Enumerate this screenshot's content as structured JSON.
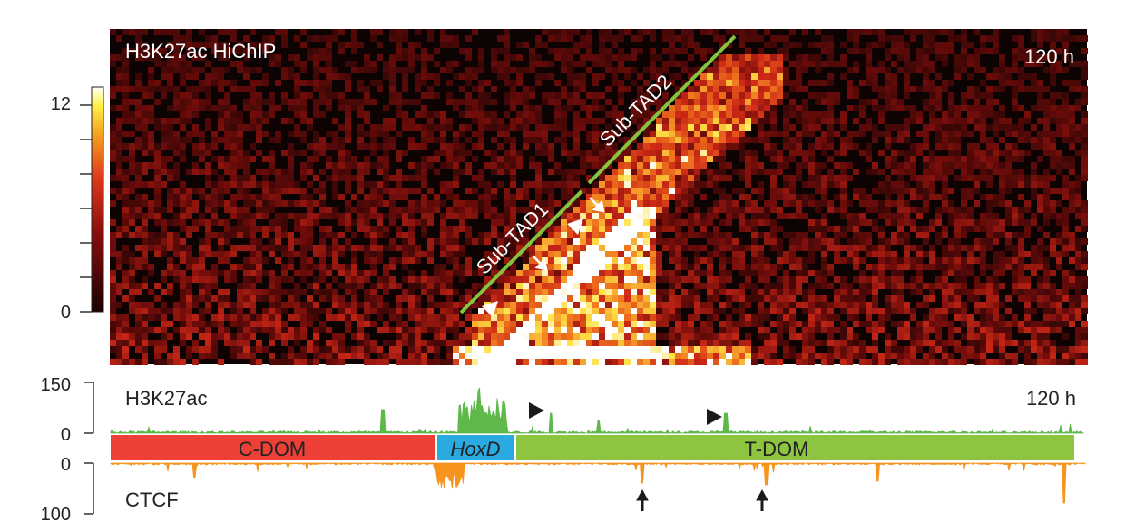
{
  "heatmap": {
    "title": "H3K27ac HiChIP",
    "timepoint": "120 h",
    "colorbar": {
      "max_label": "12",
      "min_label": "0",
      "min": 0,
      "max": 12
    },
    "domain_labels": {
      "sub_tad1": "Sub-TAD1",
      "sub_tad2": "Sub-TAD2"
    },
    "domain_line_color": "#86c440"
  },
  "h3k27ac_track": {
    "label": "H3K27ac",
    "timepoint": "120 h",
    "ymax_label": "150",
    "ymin_label": "0",
    "color": "#5fb94a"
  },
  "domains": [
    {
      "label": "C-DOM",
      "color": "#ee4036"
    },
    {
      "label": "HoxD",
      "color": "#29aae1"
    },
    {
      "label": "T-DOM",
      "color": "#8dc540"
    }
  ],
  "ctcf_track": {
    "label": "CTCF",
    "ymin_label": "0",
    "ymax_label": "100",
    "color": "#f7941d"
  },
  "colors": {
    "heat_background": "#0e0303",
    "arrowhead": "#ffffff",
    "marker": "#1a1a1a"
  }
}
